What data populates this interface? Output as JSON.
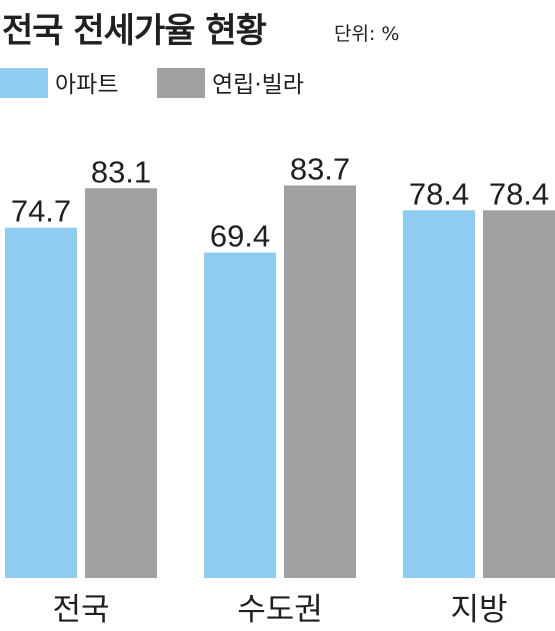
{
  "chart_data": {
    "type": "bar",
    "title": "전국 전세가율 현황",
    "unit": "단위: %",
    "categories": [
      "전국",
      "수도권",
      "지방"
    ],
    "series": [
      {
        "name": "아파트",
        "color": "#8fcdf0",
        "values": [
          74.7,
          69.4,
          78.4
        ]
      },
      {
        "name": "연립·빌라",
        "color": "#a1a1a2",
        "values": [
          83.1,
          83.7,
          78.4
        ]
      }
    ],
    "ylim": [
      0,
      100
    ]
  }
}
